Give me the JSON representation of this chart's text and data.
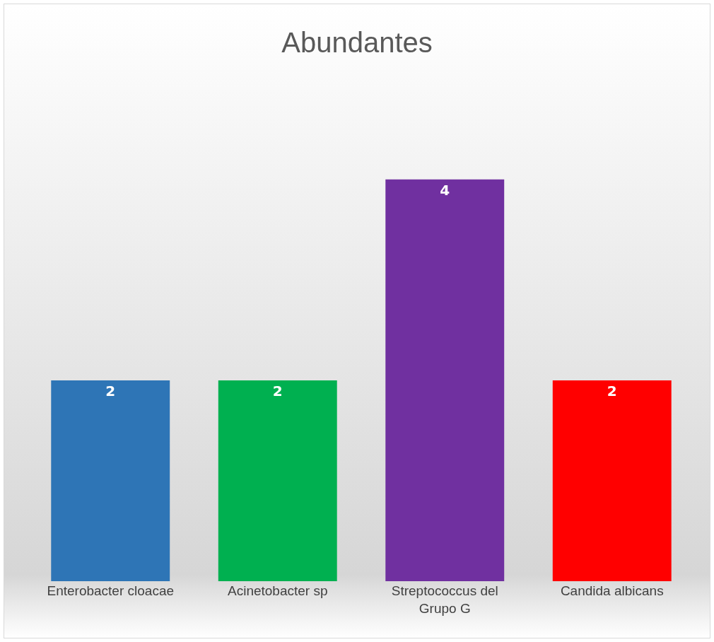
{
  "chart_data": {
    "type": "bar",
    "title": "Abundantes",
    "categories": [
      "Enterobacter cloacae",
      "Acinetobacter sp",
      "Streptococcus del Grupo G",
      "Candida albicans"
    ],
    "values": [
      2,
      2,
      4,
      2
    ],
    "colors": [
      "#2e75b6",
      "#00b050",
      "#7030a0",
      "#ff0000"
    ],
    "data_labels": true
  }
}
